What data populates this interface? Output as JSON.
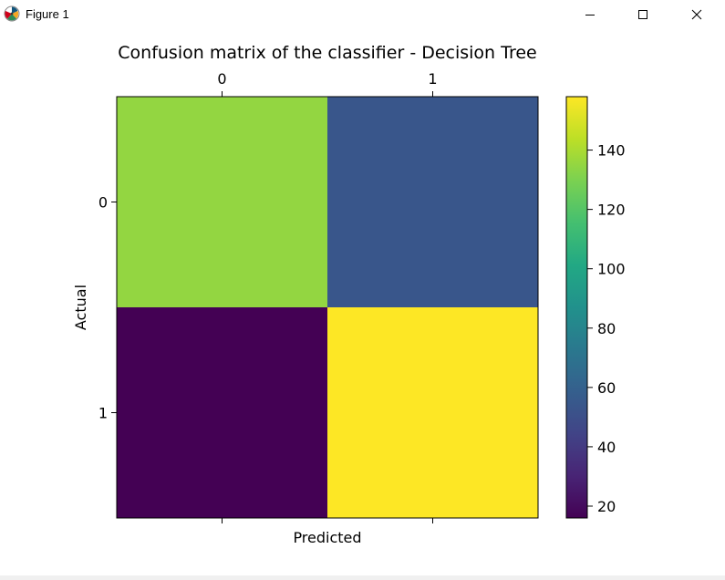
{
  "window": {
    "title": "Figure 1",
    "app_icon": "matplotlib-icon",
    "controls": {
      "minimize_icon": "minimize-icon",
      "maximize_icon": "maximize-icon",
      "close_icon": "close-icon"
    }
  },
  "chart_data": {
    "type": "heatmap",
    "title": "Confusion matrix of the classifier - Decision Tree",
    "xlabel": "Predicted",
    "ylabel": "Actual",
    "x_ticks": [
      "0",
      "1"
    ],
    "y_ticks": [
      "0",
      "1"
    ],
    "x_tick_position": "top",
    "matrix": [
      [
        135,
        54
      ],
      [
        16,
        158
      ]
    ],
    "colormap": "viridis",
    "colorbar": {
      "range": [
        16,
        158
      ],
      "ticks": [
        20,
        40,
        60,
        80,
        100,
        120,
        140
      ],
      "placement": "right"
    },
    "grid": false
  }
}
